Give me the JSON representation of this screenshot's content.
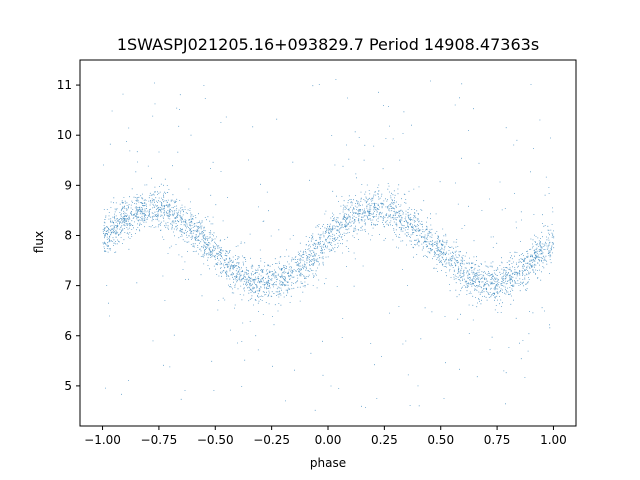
{
  "chart_data": {
    "type": "scatter",
    "title": "1SWASPJ021205.16+093829.7 Period 14908.47363s",
    "xlabel": "phase",
    "ylabel": "flux",
    "xlim": [
      -1.1,
      1.1
    ],
    "ylim": [
      4.2,
      11.5
    ],
    "x_ticks": [
      -1.0,
      -0.75,
      -0.5,
      -0.25,
      0.0,
      0.25,
      0.5,
      0.75,
      1.0
    ],
    "x_tick_labels": [
      "−1.00",
      "−0.75",
      "−0.50",
      "−0.25",
      "0.00",
      "0.25",
      "0.50",
      "0.75",
      "1.00"
    ],
    "y_ticks": [
      5,
      6,
      7,
      8,
      9,
      10,
      11
    ],
    "y_tick_labels": [
      "5",
      "6",
      "7",
      "8",
      "9",
      "10",
      "11"
    ],
    "grid": false,
    "point_color": "#1f77b4",
    "series": [
      {
        "description_model": "sinusoid",
        "mean_flux": 7.8,
        "amplitude": 0.75,
        "peak_phases": [
          -0.78,
          0.22
        ],
        "trough_phases": [
          -0.28,
          0.72
        ],
        "band_sigma": 0.2,
        "outlier_range": [
          4.5,
          11.2
        ],
        "approx_points": 12000
      }
    ]
  }
}
